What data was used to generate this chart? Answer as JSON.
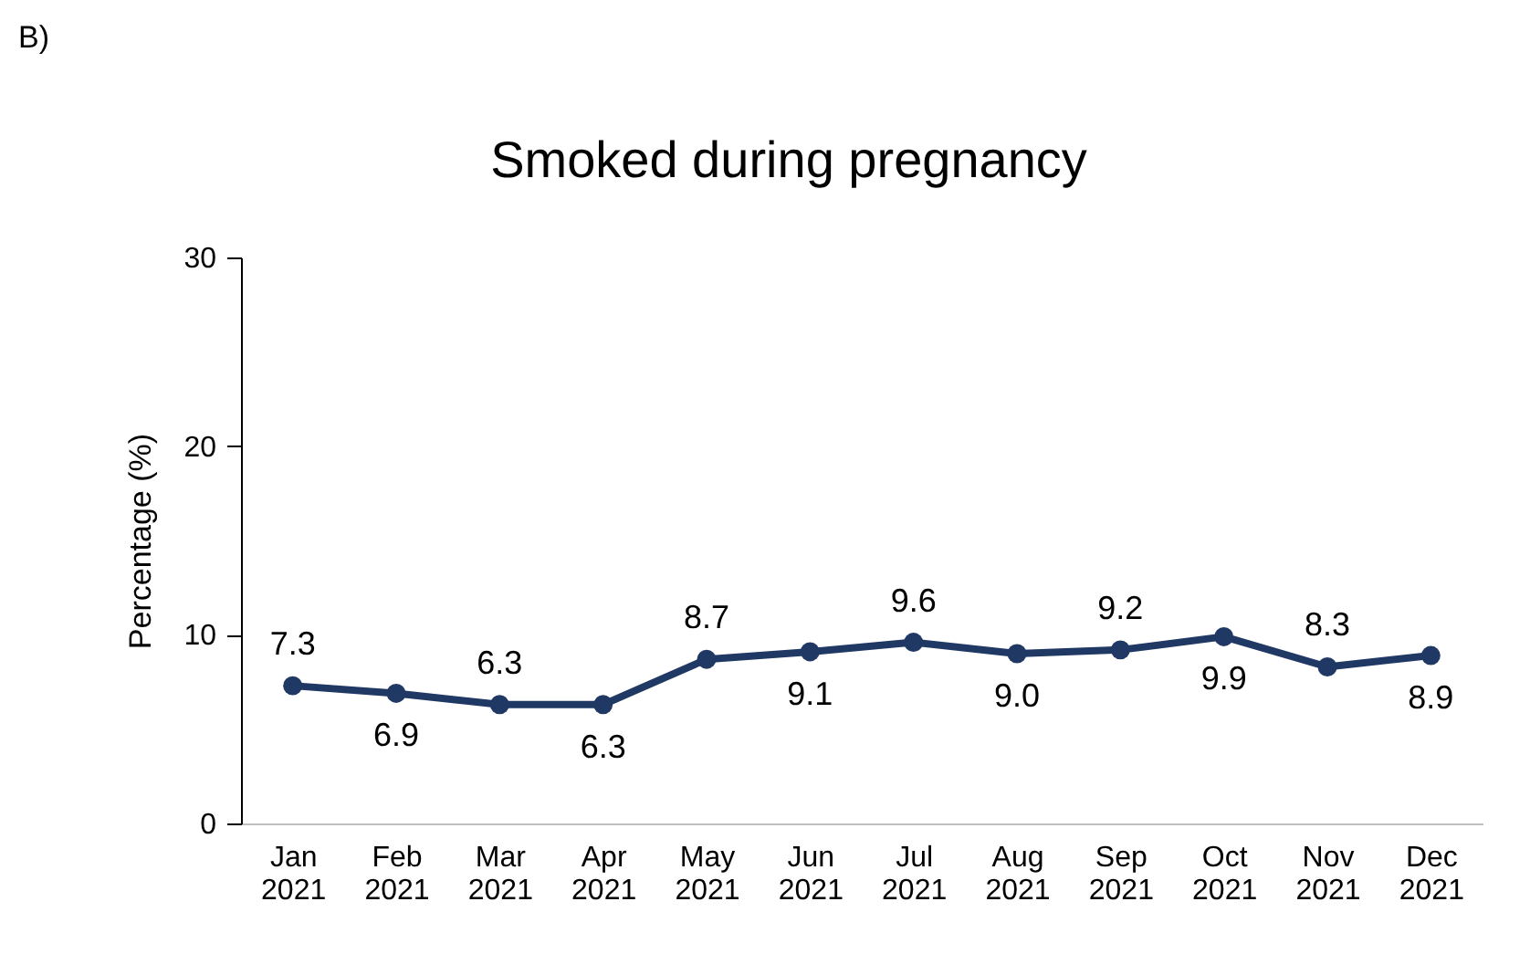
{
  "chart_data": {
    "type": "line",
    "title": "Smoked during pregnancy",
    "ylabel": "Percentage (%)",
    "annotations": [
      "B)"
    ],
    "categories": [
      "Jan 2021",
      "Feb 2021",
      "Mar 2021",
      "Apr 2021",
      "May 2021",
      "Jun 2021",
      "Jul 2021",
      "Aug 2021",
      "Sep 2021",
      "Oct 2021",
      "Nov 2021",
      "Dec 2021"
    ],
    "series": [
      {
        "color": "#203864",
        "values": [
          7.3,
          6.9,
          6.3,
          6.3,
          8.7,
          9.1,
          9.6,
          9.0,
          9.2,
          9.9,
          8.3,
          8.9
        ]
      }
    ],
    "value_labels": [
      "7.3",
      "6.9",
      "6.3",
      "6.3",
      "8.7",
      "9.1",
      "9.6",
      "9.0",
      "9.2",
      "9.9",
      "8.3",
      "8.9"
    ],
    "ylim": [
      0,
      30
    ],
    "yticks": [
      0,
      10,
      20,
      30
    ],
    "grid": false,
    "legend": false,
    "marker": "circle",
    "line_style": "solid"
  }
}
